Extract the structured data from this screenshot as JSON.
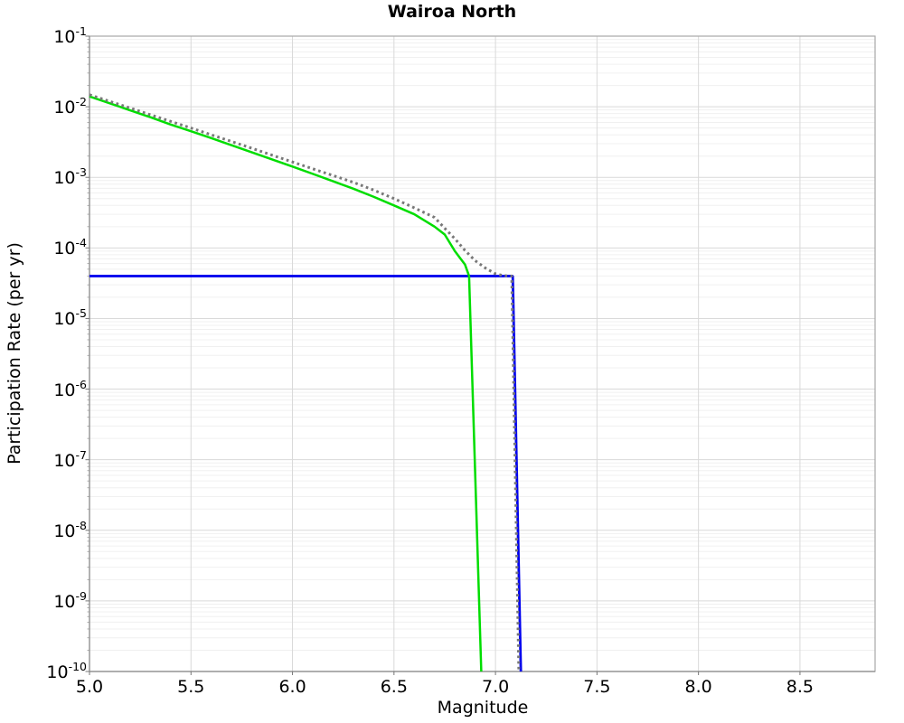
{
  "chart_data": {
    "type": "line",
    "title": "Wairoa North",
    "xlabel": "Magnitude",
    "ylabel": "Participation Rate (per yr)",
    "xlim": [
      5.0,
      8.87
    ],
    "ylim": [
      1e-10,
      0.1
    ],
    "ylim_exp": [
      -10,
      -1
    ],
    "x_scale": "linear",
    "y_scale": "log",
    "grid": {
      "horizontal_major": true,
      "horizontal_minor_log": true,
      "vertical_major": true
    },
    "legend": "none",
    "x_ticks": [
      {
        "value": 5.0,
        "label": "5.0"
      },
      {
        "value": 5.5,
        "label": "5.5"
      },
      {
        "value": 6.0,
        "label": "6.0"
      },
      {
        "value": 6.5,
        "label": "6.5"
      },
      {
        "value": 7.0,
        "label": "7.0"
      },
      {
        "value": 7.5,
        "label": "7.5"
      },
      {
        "value": 8.0,
        "label": "8.0"
      },
      {
        "value": 8.5,
        "label": "8.5"
      }
    ],
    "y_ticks": [
      {
        "exponent": -1,
        "base": "10",
        "sup": "-1"
      },
      {
        "exponent": -2,
        "base": "10",
        "sup": "-2"
      },
      {
        "exponent": -3,
        "base": "10",
        "sup": "-3"
      },
      {
        "exponent": -4,
        "base": "10",
        "sup": "-4"
      },
      {
        "exponent": -5,
        "base": "10",
        "sup": "-5"
      },
      {
        "exponent": -6,
        "base": "10",
        "sup": "-6"
      },
      {
        "exponent": -7,
        "base": "10",
        "sup": "-7"
      },
      {
        "exponent": -8,
        "base": "10",
        "sup": "-8"
      },
      {
        "exponent": -9,
        "base": "10",
        "sup": "-9"
      },
      {
        "exponent": -10,
        "base": "10",
        "sup": "-10"
      }
    ],
    "series": [
      {
        "name": "blue-solid-line",
        "color": "#0000ee",
        "line_style": "solid",
        "width": 2.8,
        "points": [
          [
            5.0,
            4e-05
          ],
          [
            7.085,
            4e-05
          ],
          [
            7.125,
            1e-10
          ]
        ]
      },
      {
        "name": "green-solid-curve",
        "color": "#00dd00",
        "line_style": "solid",
        "width": 2.5,
        "points": [
          [
            5.0,
            0.014
          ],
          [
            5.1,
            0.0112
          ],
          [
            5.2,
            0.0089
          ],
          [
            5.3,
            0.0071
          ],
          [
            5.4,
            0.0056
          ],
          [
            5.5,
            0.0045
          ],
          [
            5.6,
            0.0036
          ],
          [
            5.7,
            0.00285
          ],
          [
            5.8,
            0.00226
          ],
          [
            5.9,
            0.00179
          ],
          [
            6.0,
            0.00142
          ],
          [
            6.1,
            0.00112
          ],
          [
            6.2,
            0.00088
          ],
          [
            6.3,
            0.00069
          ],
          [
            6.4,
            0.00053
          ],
          [
            6.5,
            0.0004
          ],
          [
            6.6,
            0.0003
          ],
          [
            6.7,
            0.0002
          ],
          [
            6.75,
            0.000155
          ],
          [
            6.8,
            9e-05
          ],
          [
            6.85,
            5.8e-05
          ],
          [
            6.87,
            4e-05
          ],
          [
            6.93,
            1e-10
          ]
        ]
      },
      {
        "name": "gray-dotted-curve",
        "color": "#787878",
        "line_style": "dotted",
        "width": 3,
        "points": [
          [
            5.0,
            0.0148
          ],
          [
            5.1,
            0.0119
          ],
          [
            5.2,
            0.0096
          ],
          [
            5.3,
            0.0077
          ],
          [
            5.4,
            0.0062
          ],
          [
            5.5,
            0.005
          ],
          [
            5.6,
            0.004
          ],
          [
            5.7,
            0.00322
          ],
          [
            5.8,
            0.00258
          ],
          [
            5.9,
            0.00206
          ],
          [
            6.0,
            0.00165
          ],
          [
            6.1,
            0.00132
          ],
          [
            6.2,
            0.00106
          ],
          [
            6.3,
            0.00085
          ],
          [
            6.4,
            0.00066
          ],
          [
            6.5,
            0.0005
          ],
          [
            6.6,
            0.00037
          ],
          [
            6.7,
            0.00027
          ],
          [
            6.75,
            0.00019
          ],
          [
            6.8,
            0.000135
          ],
          [
            6.85,
            9.2e-05
          ],
          [
            6.9,
            6.6e-05
          ],
          [
            6.95,
            5.2e-05
          ],
          [
            7.0,
            4.3e-05
          ],
          [
            7.04,
            4.05e-05
          ],
          [
            7.08,
            4e-05
          ],
          [
            7.115,
            1e-10
          ]
        ]
      }
    ]
  }
}
